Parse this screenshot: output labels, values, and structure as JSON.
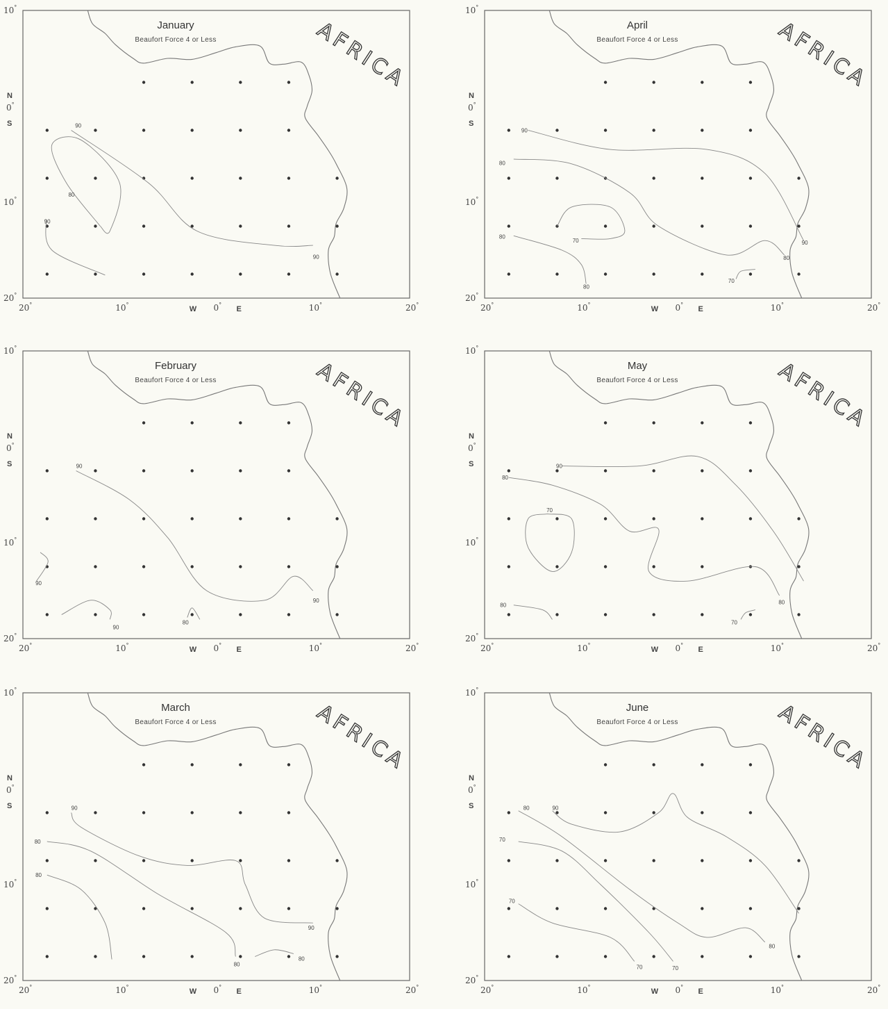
{
  "figure": {
    "subtitle": "Beaufort Force 4 or Less",
    "continent_label": "AFRICA",
    "lat_ticks": [
      "10",
      "0",
      "10",
      "20"
    ],
    "lat_letters": [
      "N",
      "S"
    ],
    "lon_ticks": [
      "20",
      "10",
      "W",
      "0",
      "E",
      "10",
      "20"
    ]
  },
  "panels": [
    {
      "month": "January",
      "isolines": [
        {
          "value": "90",
          "points": [
            [
              -15,
              -2.5
            ],
            [
              -7,
              -8
            ],
            [
              -2,
              -13
            ],
            [
              6,
              -14.5
            ],
            [
              10,
              -14.5
            ]
          ],
          "labels": [
            [
              -14.6,
              -2
            ],
            [
              10,
              -15.7
            ]
          ]
        },
        {
          "value": "80",
          "points": [
            [
              -12,
              -12.5
            ],
            [
              -15.5,
              -8
            ],
            [
              -17,
              -4
            ],
            [
              -14,
              -3.5
            ],
            [
              -10,
              -8
            ],
            [
              -11,
              -13
            ],
            [
              -12,
              -12.5
            ]
          ],
          "labels": [
            [
              -15.3,
              -9.2
            ]
          ]
        },
        {
          "value": "90",
          "points": [
            [
              -17.6,
              -11.8
            ],
            [
              -17,
              -15
            ],
            [
              -11.5,
              -17.6
            ]
          ],
          "labels": [
            [
              -17.8,
              -12
            ]
          ]
        }
      ]
    },
    {
      "month": "April",
      "isolines": [
        {
          "value": "90",
          "points": [
            [
              -15.5,
              -2.5
            ],
            [
              -7,
              -4.5
            ],
            [
              3,
              -4.5
            ],
            [
              9,
              -7
            ],
            [
              13,
              -14
            ]
          ],
          "labels": [
            [
              -16.2,
              -2.5
            ],
            [
              12.8,
              -14.2
            ]
          ]
        },
        {
          "value": "80",
          "points": [
            [
              -17,
              -5.5
            ],
            [
              -11,
              -6
            ],
            [
              -5,
              -9
            ],
            [
              -2,
              -12.5
            ],
            [
              5,
              -15.5
            ],
            [
              9,
              -14
            ],
            [
              11,
              -15.5
            ]
          ],
          "labels": [
            [
              -18.5,
              -5.9
            ],
            [
              10.9,
              -15.8
            ]
          ]
        },
        {
          "value": "70",
          "points": [
            [
              -12.5,
              -12.5
            ],
            [
              -11,
              -10.5
            ],
            [
              -7,
              -10.5
            ],
            [
              -5.5,
              -13
            ],
            [
              -7,
              -13.8
            ],
            [
              -10,
              -13.8
            ]
          ],
          "labels": [
            [
              -10.9,
              -14
            ]
          ]
        },
        {
          "value": "80",
          "points": [
            [
              -17,
              -13.5
            ],
            [
              -12,
              -15
            ],
            [
              -10,
              -16.5
            ],
            [
              -9.5,
              -18.5
            ]
          ],
          "labels": [
            [
              -18.5,
              -13.6
            ],
            [
              -9.8,
              -18.8
            ]
          ]
        },
        {
          "value": "70",
          "points": [
            [
              6,
              -18
            ],
            [
              6.5,
              -17.2
            ],
            [
              8,
              -17
            ]
          ],
          "labels": [
            [
              5.2,
              -18.2
            ]
          ]
        }
      ]
    },
    {
      "month": "February",
      "isolines": [
        {
          "value": "90",
          "points": [
            [
              -14.5,
              -2.5
            ],
            [
              -9,
              -5.5
            ],
            [
              -5,
              -9.5
            ],
            [
              -1,
              -15
            ],
            [
              5,
              -16
            ],
            [
              8,
              -13.5
            ],
            [
              10,
              -15
            ]
          ],
          "labels": [
            [
              -14.5,
              -2
            ],
            [
              10,
              -16
            ]
          ]
        },
        {
          "value": "90",
          "points": [
            [
              -18.2,
              -11
            ],
            [
              -17.4,
              -12
            ],
            [
              -18.6,
              -14
            ]
          ],
          "labels": [
            [
              -18.7,
              -14.2
            ]
          ]
        },
        {
          "value": "90",
          "points": [
            [
              -16,
              -17.5
            ],
            [
              -13,
              -16
            ],
            [
              -11,
              -17
            ],
            [
              -11,
              -18
            ]
          ],
          "labels": [
            [
              -10.7,
              -18.8
            ]
          ]
        },
        {
          "value": "80",
          "points": [
            [
              -3,
              -17.8
            ],
            [
              -2.5,
              -16.8
            ],
            [
              -1.7,
              -18
            ]
          ],
          "labels": [
            [
              -3.5,
              -18.3
            ]
          ]
        }
      ]
    },
    {
      "month": "May",
      "isolines": [
        {
          "value": "90",
          "points": [
            [
              -12,
              -2
            ],
            [
              -4,
              -2
            ],
            [
              2,
              -1
            ],
            [
              6,
              -4
            ],
            [
              10,
              -9
            ],
            [
              13,
              -14
            ]
          ],
          "labels": [
            [
              -12.6,
              -2
            ]
          ]
        },
        {
          "value": "80",
          "points": [
            [
              -17.5,
              -3.2
            ],
            [
              -13,
              -4
            ],
            [
              -8,
              -6
            ],
            [
              -5,
              -8.8
            ],
            [
              -2,
              -8.6
            ],
            [
              -3,
              -13
            ],
            [
              1,
              -14
            ],
            [
              8,
              -12.5
            ],
            [
              10.5,
              -15.5
            ]
          ],
          "labels": [
            [
              -18.2,
              -3.2
            ],
            [
              10.4,
              -16.2
            ]
          ]
        },
        {
          "value": "70",
          "points": [
            [
              -13.5,
              -7
            ],
            [
              -15.5,
              -7.5
            ],
            [
              -15.5,
              -10.5
            ],
            [
              -13,
              -13
            ],
            [
              -11,
              -11
            ],
            [
              -11,
              -7.5
            ],
            [
              -13.5,
              -7
            ]
          ],
          "labels": [
            [
              -13.6,
              -6.6
            ]
          ]
        },
        {
          "value": "80",
          "points": [
            [
              -17,
              -16.5
            ],
            [
              -14,
              -17
            ],
            [
              -13,
              -18
            ]
          ],
          "labels": [
            [
              -18.4,
              -16.5
            ]
          ]
        },
        {
          "value": "70",
          "points": [
            [
              6.5,
              -18
            ],
            [
              7,
              -17.3
            ],
            [
              8,
              -17
            ]
          ],
          "labels": [
            [
              5.5,
              -18.3
            ]
          ]
        }
      ]
    },
    {
      "month": "March",
      "isolines": [
        {
          "value": "90",
          "points": [
            [
              -15,
              -2.5
            ],
            [
              -14,
              -4
            ],
            [
              -8,
              -7
            ],
            [
              -3,
              -8
            ],
            [
              2,
              -7.5
            ],
            [
              3,
              -10
            ],
            [
              5,
              -13.5
            ],
            [
              10,
              -14
            ]
          ],
          "labels": [
            [
              -15,
              -2
            ],
            [
              9.5,
              -14.5
            ]
          ]
        },
        {
          "value": "80",
          "points": [
            [
              -17.5,
              -5.5
            ],
            [
              -13,
              -6.5
            ],
            [
              -6,
              -11
            ],
            [
              1,
              -15
            ],
            [
              2,
              -17.5
            ]
          ],
          "labels": [
            [
              -18.8,
              -5.5
            ],
            [
              1.8,
              -18.3
            ]
          ]
        },
        {
          "value": "80",
          "points": [
            [
              -17.5,
              -9
            ],
            [
              -14,
              -10.5
            ],
            [
              -11.5,
              -14
            ],
            [
              -10.8,
              -17.8
            ]
          ],
          "labels": [
            [
              -18.7,
              -9
            ]
          ]
        },
        {
          "value": "80",
          "points": [
            [
              4,
              -17.5
            ],
            [
              6,
              -16.8
            ],
            [
              8,
              -17.2
            ]
          ],
          "labels": [
            [
              8.5,
              -17.7
            ]
          ]
        }
      ]
    },
    {
      "month": "June",
      "isolines": [
        {
          "value": "90",
          "points": [
            [
              -13,
              -2.3
            ],
            [
              -11,
              -3.7
            ],
            [
              -6,
              -4.5
            ],
            [
              -2,
              -2.5
            ],
            [
              -0.5,
              -0.5
            ],
            [
              1,
              -3
            ],
            [
              5,
              -5
            ],
            [
              9,
              -8
            ],
            [
              12.5,
              -13
            ]
          ],
          "labels": [
            [
              -13,
              -2
            ]
          ]
        },
        {
          "value": "80",
          "points": [
            [
              -16.5,
              -2.3
            ],
            [
              -12,
              -5
            ],
            [
              -5,
              -10.5
            ],
            [
              0,
              -14
            ],
            [
              3,
              -15.5
            ],
            [
              7,
              -14.5
            ],
            [
              9,
              -16
            ]
          ],
          "labels": [
            [
              -16,
              -2
            ],
            [
              9.4,
              -16.4
            ]
          ]
        },
        {
          "value": "70",
          "points": [
            [
              -16.5,
              -5.5
            ],
            [
              -12,
              -6.5
            ],
            [
              -8,
              -10
            ],
            [
              -3,
              -15
            ],
            [
              -0.5,
              -18
            ]
          ],
          "labels": [
            [
              -18.5,
              -5.3
            ],
            [
              -0.6,
              -18.7
            ]
          ]
        },
        {
          "value": "70",
          "points": [
            [
              -16.5,
              -12
            ],
            [
              -13,
              -14
            ],
            [
              -7,
              -15.5
            ],
            [
              -4.5,
              -18
            ]
          ],
          "labels": [
            [
              -17.5,
              -11.7
            ],
            [
              -4.3,
              -18.6
            ]
          ]
        }
      ]
    }
  ]
}
